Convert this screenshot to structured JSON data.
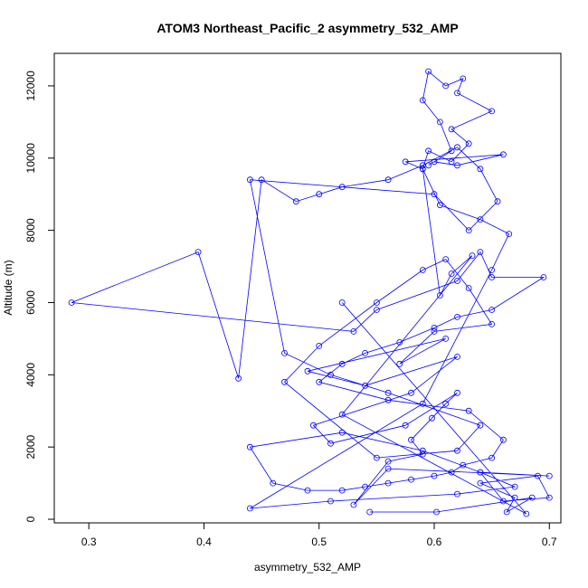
{
  "chart_data": {
    "type": "line",
    "title": "ATOM3 Northeast_Pacific_2 asymmetry_532_AMP",
    "xlabel": "asymmetry_532_AMP",
    "ylabel": "Altitude (m)",
    "xlim": [
      0.27,
      0.71
    ],
    "ylim": [
      -100,
      12900
    ],
    "xticks": [
      0.3,
      0.4,
      0.5,
      0.6,
      0.7
    ],
    "xtick_labels": [
      "0.3",
      "0.4",
      "0.5",
      "0.6",
      "0.7"
    ],
    "yticks": [
      0,
      2000,
      4000,
      6000,
      8000,
      10000,
      12000
    ],
    "ytick_labels": [
      "0",
      "2000",
      "4000",
      "6000",
      "8000",
      "10000",
      "12000"
    ],
    "grid": false,
    "legend": "none",
    "marker": "open-circle",
    "color": "#0000ff",
    "series": [
      {
        "x": [
          0.544,
          0.602,
          0.685,
          0.663,
          0.67,
          0.64,
          0.69,
          0.7,
          0.66,
          0.64,
          0.7,
          0.56,
          0.53,
          0.56,
          0.59,
          0.58,
          0.598,
          0.61,
          0.62,
          0.575,
          0.51,
          0.495,
          0.58,
          0.62,
          0.54,
          0.49,
          0.61,
          0.57,
          0.6,
          0.65,
          0.63,
          0.61,
          0.59,
          0.55,
          0.5,
          0.47,
          0.55,
          0.62,
          0.64,
          0.56,
          0.51,
          0.47,
          0.44,
          0.6,
          0.63,
          0.655,
          0.64,
          0.62,
          0.59,
          0.56,
          0.52,
          0.5,
          0.48,
          0.45,
          0.43,
          0.395,
          0.285,
          0.53,
          0.55,
          0.62,
          0.64,
          0.65,
          0.695,
          0.65,
          0.62,
          0.6,
          0.57,
          0.54,
          0.52,
          0.5,
          0.56,
          0.63,
          0.66,
          0.65,
          0.625,
          0.615,
          0.6,
          0.58,
          0.56,
          0.54,
          0.52,
          0.49,
          0.46,
          0.44,
          0.52,
          0.59,
          0.64,
          0.67,
          0.62,
          0.51,
          0.44,
          0.59,
          0.65,
          0.665,
          0.64,
          0.605,
          0.59,
          0.595,
          0.615,
          0.63,
          0.615,
          0.65,
          0.62,
          0.625,
          0.61,
          0.595,
          0.59,
          0.605,
          0.615,
          0.595,
          0.6,
          0.62,
          0.66,
          0.575,
          0.59,
          0.605,
          0.615,
          0.633,
          0.52,
          0.68,
          0.52
        ],
        "y": [
          200,
          200,
          600,
          200,
          600,
          1000,
          1200,
          600,
          500,
          1300,
          1200,
          1400,
          400,
          1600,
          1800,
          2200,
          2800,
          3200,
          3500,
          2600,
          2100,
          2600,
          3500,
          4500,
          3700,
          4100,
          5000,
          4300,
          5200,
          5400,
          6400,
          7200,
          6900,
          6000,
          4800,
          3800,
          1700,
          1900,
          2600,
          3500,
          4000,
          4600,
          9400,
          9000,
          8000,
          8800,
          9700,
          10300,
          9800,
          9400,
          9200,
          9000,
          8800,
          9400,
          3900,
          7400,
          6000,
          5200,
          5800,
          6600,
          7400,
          6700,
          6700,
          5800,
          5600,
          5300,
          4900,
          4600,
          4300,
          3800,
          3300,
          3000,
          2200,
          1700,
          1500,
          1300,
          1200,
          1100,
          1000,
          900,
          800,
          800,
          1000,
          2000,
          2400,
          1900,
          1300,
          900,
          700,
          500,
          300,
          3200,
          6900,
          7900,
          8300,
          8700,
          9700,
          10200,
          9900,
          10400,
          10800,
          11300,
          11800,
          12200,
          12000,
          12400,
          11600,
          11000,
          10200,
          9800,
          9900,
          9800,
          10100,
          9900,
          9700,
          6200,
          6800,
          7300,
          2900,
          150,
          6000
        ]
      }
    ]
  }
}
